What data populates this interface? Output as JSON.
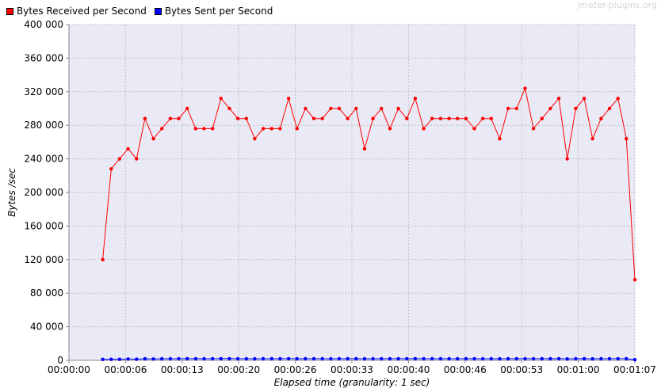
{
  "legend": {
    "received_label": "Bytes Received per Second",
    "sent_label": "Bytes Sent per Second"
  },
  "watermark": "jmeter-plugins.org",
  "colors": {
    "received": "#ff0000",
    "sent": "#0000ff",
    "plot_background": "#eaeaf6",
    "grid": "#c0c0c0"
  },
  "chart_data": {
    "type": "line",
    "xlabel": "Elapsed time (granularity: 1 sec)",
    "ylabel": "Bytes /sec",
    "x_ticks": [
      "00:00:00",
      "00:00:06",
      "00:00:13",
      "00:00:20",
      "00:00:26",
      "00:00:33",
      "00:00:40",
      "00:00:46",
      "00:00:53",
      "00:01:00",
      "00:01:07"
    ],
    "x_range_seconds": [
      0,
      67
    ],
    "y_ticks": [
      "0",
      "40 000",
      "80 000",
      "120 000",
      "160 000",
      "200 000",
      "240 000",
      "280 000",
      "320 000",
      "360 000",
      "400 000"
    ],
    "ylim": [
      0,
      400000
    ],
    "grid": true,
    "legend_position": "top-left",
    "x_seconds": [
      4,
      5,
      6,
      7,
      8,
      9,
      10,
      11,
      12,
      13,
      14,
      15,
      16,
      17,
      18,
      19,
      20,
      21,
      22,
      23,
      24,
      25,
      26,
      27,
      28,
      29,
      30,
      31,
      32,
      33,
      34,
      35,
      36,
      37,
      38,
      39,
      40,
      41,
      42,
      43,
      44,
      45,
      46,
      47,
      48,
      49,
      50,
      51,
      52,
      53,
      54,
      55,
      56,
      57,
      58,
      59,
      60,
      61,
      62,
      63,
      64,
      65,
      66,
      67
    ],
    "series": [
      {
        "name": "Bytes Received per Second",
        "values": [
          120000,
          228000,
          240000,
          252000,
          240000,
          288000,
          264000,
          276000,
          288000,
          288000,
          300000,
          276000,
          276000,
          276000,
          312000,
          300000,
          288000,
          288000,
          264000,
          276000,
          276000,
          276000,
          312000,
          276000,
          300000,
          288000,
          288000,
          300000,
          300000,
          288000,
          300000,
          252000,
          288000,
          300000,
          276000,
          300000,
          288000,
          312000,
          276000,
          288000,
          288000,
          288000,
          288000,
          288000,
          276000,
          288000,
          288000,
          264000,
          300000,
          300000,
          324000,
          276000,
          288000,
          300000,
          312000,
          240000,
          300000,
          312000,
          264000,
          288000,
          300000,
          312000,
          264000,
          96000
        ]
      },
      {
        "name": "Bytes Sent per Second",
        "values": [
          1100,
          1200,
          1250,
          1600,
          1300,
          1900,
          1600,
          1800,
          1900,
          1900,
          2000,
          1900,
          1900,
          1900,
          2000,
          2000,
          1900,
          1900,
          1800,
          1900,
          1900,
          1900,
          2000,
          1900,
          1900,
          1900,
          1900,
          1900,
          1900,
          1900,
          1900,
          1800,
          1900,
          1900,
          1900,
          2000,
          1900,
          2000,
          1900,
          1900,
          1900,
          1900,
          1900,
          1900,
          1900,
          1900,
          1900,
          1800,
          1900,
          1900,
          2000,
          1900,
          1900,
          1900,
          2000,
          1700,
          1900,
          2000,
          1800,
          1900,
          1900,
          2000,
          1900,
          800
        ]
      }
    ]
  }
}
